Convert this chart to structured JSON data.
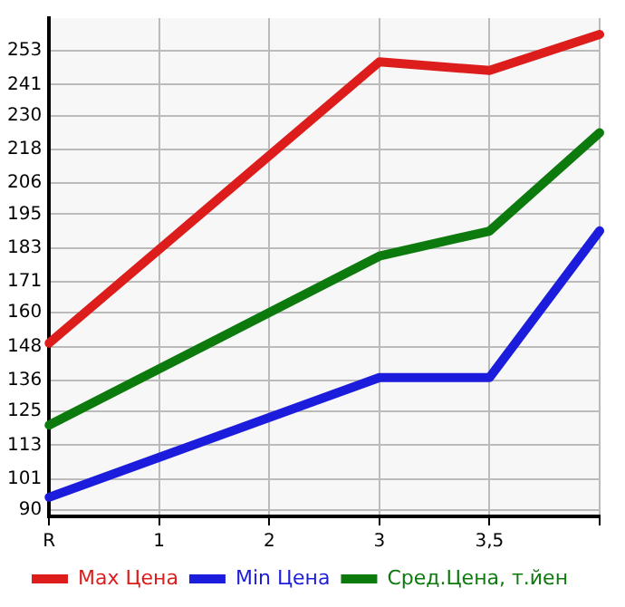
{
  "chart_data": {
    "type": "line",
    "categories": [
      "R",
      "1",
      "2",
      "3",
      "3,5",
      null
    ],
    "series": [
      {
        "name": "Max Цена",
        "color": "#dd1c1c",
        "values": [
          149.2,
          null,
          null,
          249.1,
          246.0,
          258.8
        ]
      },
      {
        "name": "Min Цена",
        "color": "#1c1cdd",
        "values": [
          94.5,
          null,
          null,
          137.0,
          137.0,
          189.1
        ]
      },
      {
        "name": "Сред.Цена, т.йен",
        "color": "#0d7a0d",
        "values": [
          120.1,
          null,
          null,
          180.1,
          189.0,
          223.9
        ]
      }
    ],
    "ylim": [
      87.7,
      264.6
    ],
    "yticks": [
      90,
      101,
      113,
      125,
      136,
      148,
      160,
      171,
      183,
      195,
      206,
      218,
      230,
      241,
      253
    ],
    "grid": true,
    "legend": "bottom",
    "marker": "none",
    "line_style": "solid"
  }
}
